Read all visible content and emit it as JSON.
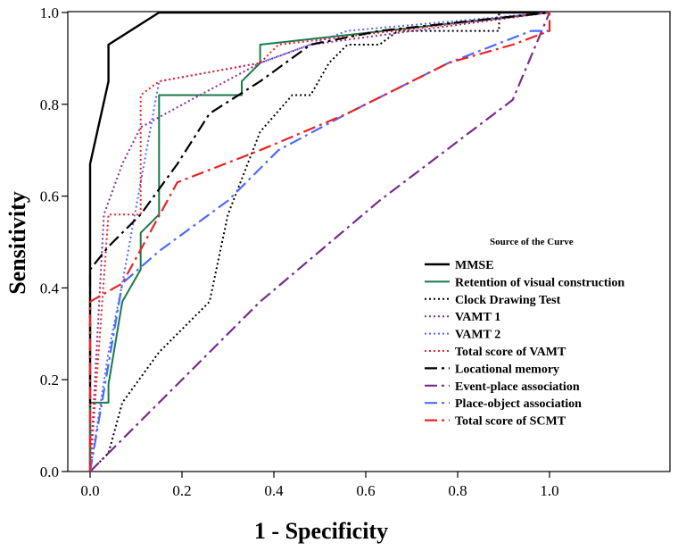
{
  "chart_data": {
    "type": "line",
    "title": "",
    "xlabel": "1 - Specificity",
    "ylabel": "Sensitivity",
    "xlim": [
      0,
      1.0
    ],
    "ylim": [
      0,
      1.0
    ],
    "x_ticks": [
      "0.0",
      "0.2",
      "0.4",
      "0.6",
      "0.8",
      "1.0"
    ],
    "y_ticks": [
      "0.0",
      "0.2",
      "0.4",
      "0.6",
      "0.8",
      "1.0"
    ],
    "grid": false,
    "legend_title": "Source of the Curve",
    "legend_position": "right",
    "series": [
      {
        "name": "MMSE",
        "color": "#000000",
        "dash": "",
        "width": 2.4,
        "x": [
          0,
          0,
          0.04,
          0.04,
          0.15,
          1.0
        ],
        "y": [
          0,
          0.67,
          0.85,
          0.93,
          1.0,
          1.0
        ]
      },
      {
        "name": "Retention of visual construction",
        "color": "#1a7a4a",
        "dash": "",
        "width": 2,
        "x": [
          0,
          0,
          0.04,
          0.04,
          0.07,
          0.11,
          0.11,
          0.15,
          0.15,
          0.33,
          0.33,
          0.37,
          0.37,
          1.0
        ],
        "y": [
          0,
          0.15,
          0.15,
          0.19,
          0.37,
          0.44,
          0.52,
          0.56,
          0.82,
          0.82,
          0.85,
          0.89,
          0.93,
          1.0
        ]
      },
      {
        "name": "Clock Drawing Test",
        "color": "#000000",
        "dash": "2,3",
        "width": 2,
        "x": [
          0,
          0.04,
          0.07,
          0.15,
          0.26,
          0.3,
          0.37,
          0.44,
          0.48,
          0.52,
          0.56,
          0.63,
          0.67,
          0.89,
          0.89,
          1.0
        ],
        "y": [
          0,
          0.04,
          0.15,
          0.26,
          0.37,
          0.56,
          0.74,
          0.82,
          0.82,
          0.89,
          0.93,
          0.93,
          0.96,
          0.96,
          1.0,
          1.0
        ]
      },
      {
        "name": "VAMT 1",
        "color": "#8a2b9a",
        "dash": "2,3",
        "width": 2,
        "x": [
          0,
          0.03,
          0.07,
          0.11,
          0.22,
          0.37,
          0.48,
          1.0
        ],
        "y": [
          0,
          0.56,
          0.67,
          0.75,
          0.81,
          0.89,
          0.93,
          1.0
        ]
      },
      {
        "name": "VAMT 2",
        "color": "#5566ff",
        "dash": "2,3",
        "width": 2,
        "x": [
          0,
          0.04,
          0.07,
          0.11,
          0.15,
          0.37,
          0.56,
          1.0
        ],
        "y": [
          0,
          0.26,
          0.41,
          0.63,
          0.85,
          0.89,
          0.96,
          1.0
        ]
      },
      {
        "name": "Total score of VAMT",
        "color": "#ee2222",
        "dash": "2,3",
        "width": 2,
        "x": [
          0,
          0.04,
          0.11,
          0.11,
          0.15,
          0.37,
          0.41,
          1.0
        ],
        "y": [
          0,
          0.56,
          0.56,
          0.82,
          0.85,
          0.89,
          0.93,
          1.0
        ]
      },
      {
        "name": "Locational memory",
        "color": "#000000",
        "dash": "14,5,3,5",
        "width": 2.2,
        "x": [
          0,
          0,
          0.04,
          0.11,
          0.19,
          0.26,
          0.37,
          0.48,
          0.63,
          1.0
        ],
        "y": [
          0.14,
          0.44,
          0.49,
          0.56,
          0.67,
          0.78,
          0.85,
          0.93,
          0.96,
          1.0
        ]
      },
      {
        "name": "Event-place association",
        "color": "#7a2a8a",
        "dash": "14,5,3,5",
        "width": 2.2,
        "x": [
          0,
          0.04,
          0.37,
          0.63,
          0.92,
          1.0
        ],
        "y": [
          0,
          0.04,
          0.37,
          0.59,
          0.81,
          1.0
        ]
      },
      {
        "name": "Place-object association",
        "color": "#4a6bff",
        "dash": "14,5,3,5",
        "width": 2.2,
        "x": [
          0,
          0.07,
          0.15,
          0.3,
          0.41,
          0.56,
          0.78,
          0.96,
          1.0
        ],
        "y": [
          0,
          0.41,
          0.48,
          0.59,
          0.7,
          0.78,
          0.89,
          0.96,
          0.96
        ]
      },
      {
        "name": "Total score of SCMT",
        "color": "#ee2222",
        "dash": "14,5,3,5",
        "width": 2.2,
        "x": [
          0,
          0,
          0.07,
          0.19,
          0.37,
          0.56,
          0.78,
          0.92,
          1.0,
          1.0
        ],
        "y": [
          0,
          0.37,
          0.41,
          0.63,
          0.7,
          0.78,
          0.89,
          0.93,
          0.96,
          1.0
        ]
      }
    ]
  }
}
